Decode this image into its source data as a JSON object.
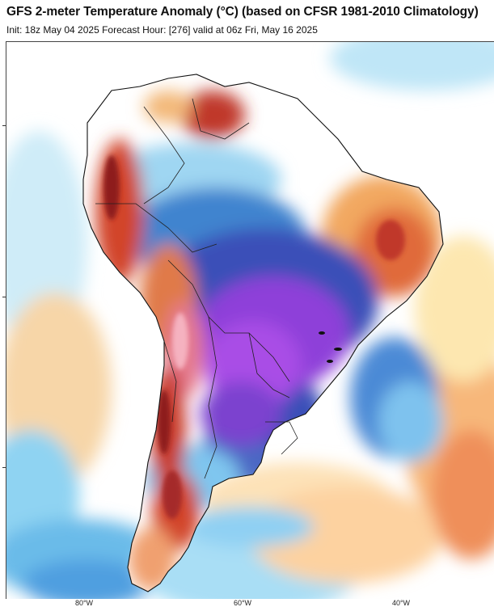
{
  "header": {
    "title": "GFS 2-meter Temperature Anomaly (°C) (based on CFSR 1981-2010 Climatology)",
    "subtitle": "Init: 18z May 04 2025   Forecast Hour: [276]   valid at 06z Fri, May 16 2025"
  },
  "map": {
    "region": "South America",
    "variable": "2-meter temperature anomaly",
    "anomaly_colors": {
      "strong_cold": "#9a3de0",
      "cold": "#3a4fb8",
      "cool": "#3f84cf",
      "slight_cool": "#7ec8ee",
      "near_normal": "#ffffff",
      "slight_warm": "#fde7b0",
      "warm": "#f2a860",
      "hot": "#d2452a",
      "very_hot": "#8e1e1e"
    },
    "longitude_labels": [
      "80°W",
      "60°W",
      "40°W"
    ]
  }
}
